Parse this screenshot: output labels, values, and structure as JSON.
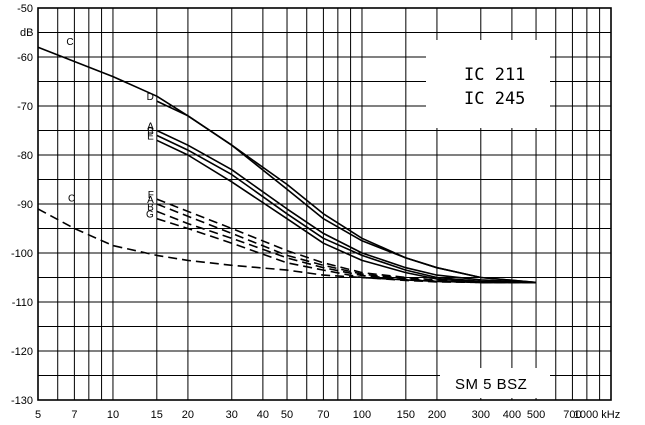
{
  "chart_data": {
    "type": "line",
    "xscale": "log",
    "xlim": [
      5,
      1000
    ],
    "ylim": [
      -130,
      -50
    ],
    "grid": true,
    "y_unit": "dB",
    "x_unit": "kHz",
    "x_ticks": [
      5,
      7,
      10,
      15,
      20,
      30,
      40,
      50,
      70,
      100,
      150,
      200,
      300,
      400,
      500,
      700,
      1000
    ],
    "x_tick_labels": [
      "5",
      "7",
      "10",
      "15",
      "20",
      "30",
      "40",
      "50",
      "70",
      "100",
      "150",
      "200",
      "300",
      "400",
      "500",
      "700",
      "1000 kHz"
    ],
    "y_ticks": [
      -50,
      -60,
      -70,
      -80,
      -90,
      -100,
      -110,
      -120,
      -130
    ],
    "y_tick_labels": [
      "-50",
      "-60",
      "-70",
      "-80",
      "-90",
      "-100",
      "-110",
      "-120",
      "-130"
    ],
    "annotations": [
      "IC 211",
      "IC 245",
      "SM 5 BSZ"
    ],
    "series": [
      {
        "name": "C",
        "style": "solid",
        "x": [
          5,
          10,
          15,
          20,
          30,
          50,
          70,
          100,
          150,
          200,
          300,
          500
        ],
        "y": [
          -58,
          -64,
          -68,
          -72,
          -78,
          -86,
          -92,
          -97,
          -101,
          -103,
          -105,
          -106
        ]
      },
      {
        "name": "D",
        "style": "solid",
        "x": [
          15,
          20,
          30,
          50,
          70,
          100,
          150,
          200,
          300,
          500
        ],
        "y": [
          -69,
          -72,
          -78,
          -87,
          -93,
          -97.5,
          -101,
          -103,
          -105,
          -106
        ]
      },
      {
        "name": "A",
        "style": "solid",
        "x": [
          15,
          20,
          30,
          50,
          70,
          100,
          150,
          200,
          300,
          500
        ],
        "y": [
          -75,
          -78,
          -83,
          -91,
          -96,
          -100,
          -103,
          -104.5,
          -105.5,
          -106
        ]
      },
      {
        "name": "B",
        "style": "solid",
        "x": [
          15,
          20,
          30,
          50,
          70,
          100,
          150,
          200,
          300,
          500
        ],
        "y": [
          -76,
          -79,
          -84,
          -92,
          -97,
          -100.5,
          -103.5,
          -105,
          -105.8,
          -106
        ]
      },
      {
        "name": "E",
        "style": "solid",
        "x": [
          15,
          20,
          30,
          50,
          70,
          100,
          150,
          200,
          300,
          500
        ],
        "y": [
          -77,
          -80,
          -85.5,
          -93,
          -98,
          -101.5,
          -104,
          -105.3,
          -106,
          -106
        ]
      },
      {
        "name": "F",
        "style": "dashed",
        "x": [
          15,
          20,
          30,
          50,
          70,
          100,
          150,
          200,
          300,
          500
        ],
        "y": [
          -89,
          -91.5,
          -95,
          -99.5,
          -102,
          -104,
          -105,
          -105.5,
          -106,
          -106
        ]
      },
      {
        "name": "A",
        "style": "dashed",
        "x": [
          15,
          20,
          30,
          50,
          70,
          100,
          150,
          200,
          300,
          500
        ],
        "y": [
          -90,
          -92.5,
          -96,
          -100.5,
          -102.5,
          -104.3,
          -105.2,
          -105.7,
          -106,
          -106
        ]
      },
      {
        "name": "B",
        "style": "dashed",
        "x": [
          15,
          20,
          30,
          50,
          70,
          100,
          150,
          200,
          300,
          500
        ],
        "y": [
          -91.5,
          -94,
          -97,
          -101,
          -103,
          -104.6,
          -105.4,
          -105.8,
          -106,
          -106
        ]
      },
      {
        "name": "G",
        "style": "dashed",
        "x": [
          15,
          20,
          30,
          50,
          70,
          100,
          150,
          200,
          300,
          500
        ],
        "y": [
          -93,
          -95,
          -98,
          -102,
          -103.5,
          -105,
          -105.6,
          -105.9,
          -106,
          -106
        ]
      },
      {
        "name": "C",
        "style": "dashed",
        "x": [
          5,
          7,
          10,
          15,
          20,
          30,
          50,
          70,
          100,
          150,
          200,
          300,
          500
        ],
        "y": [
          -91,
          -95,
          -98.5,
          -100.5,
          -101.5,
          -102.5,
          -103.5,
          -104.5,
          -105,
          -105.5,
          -105.8,
          -106,
          -106
        ]
      }
    ]
  }
}
